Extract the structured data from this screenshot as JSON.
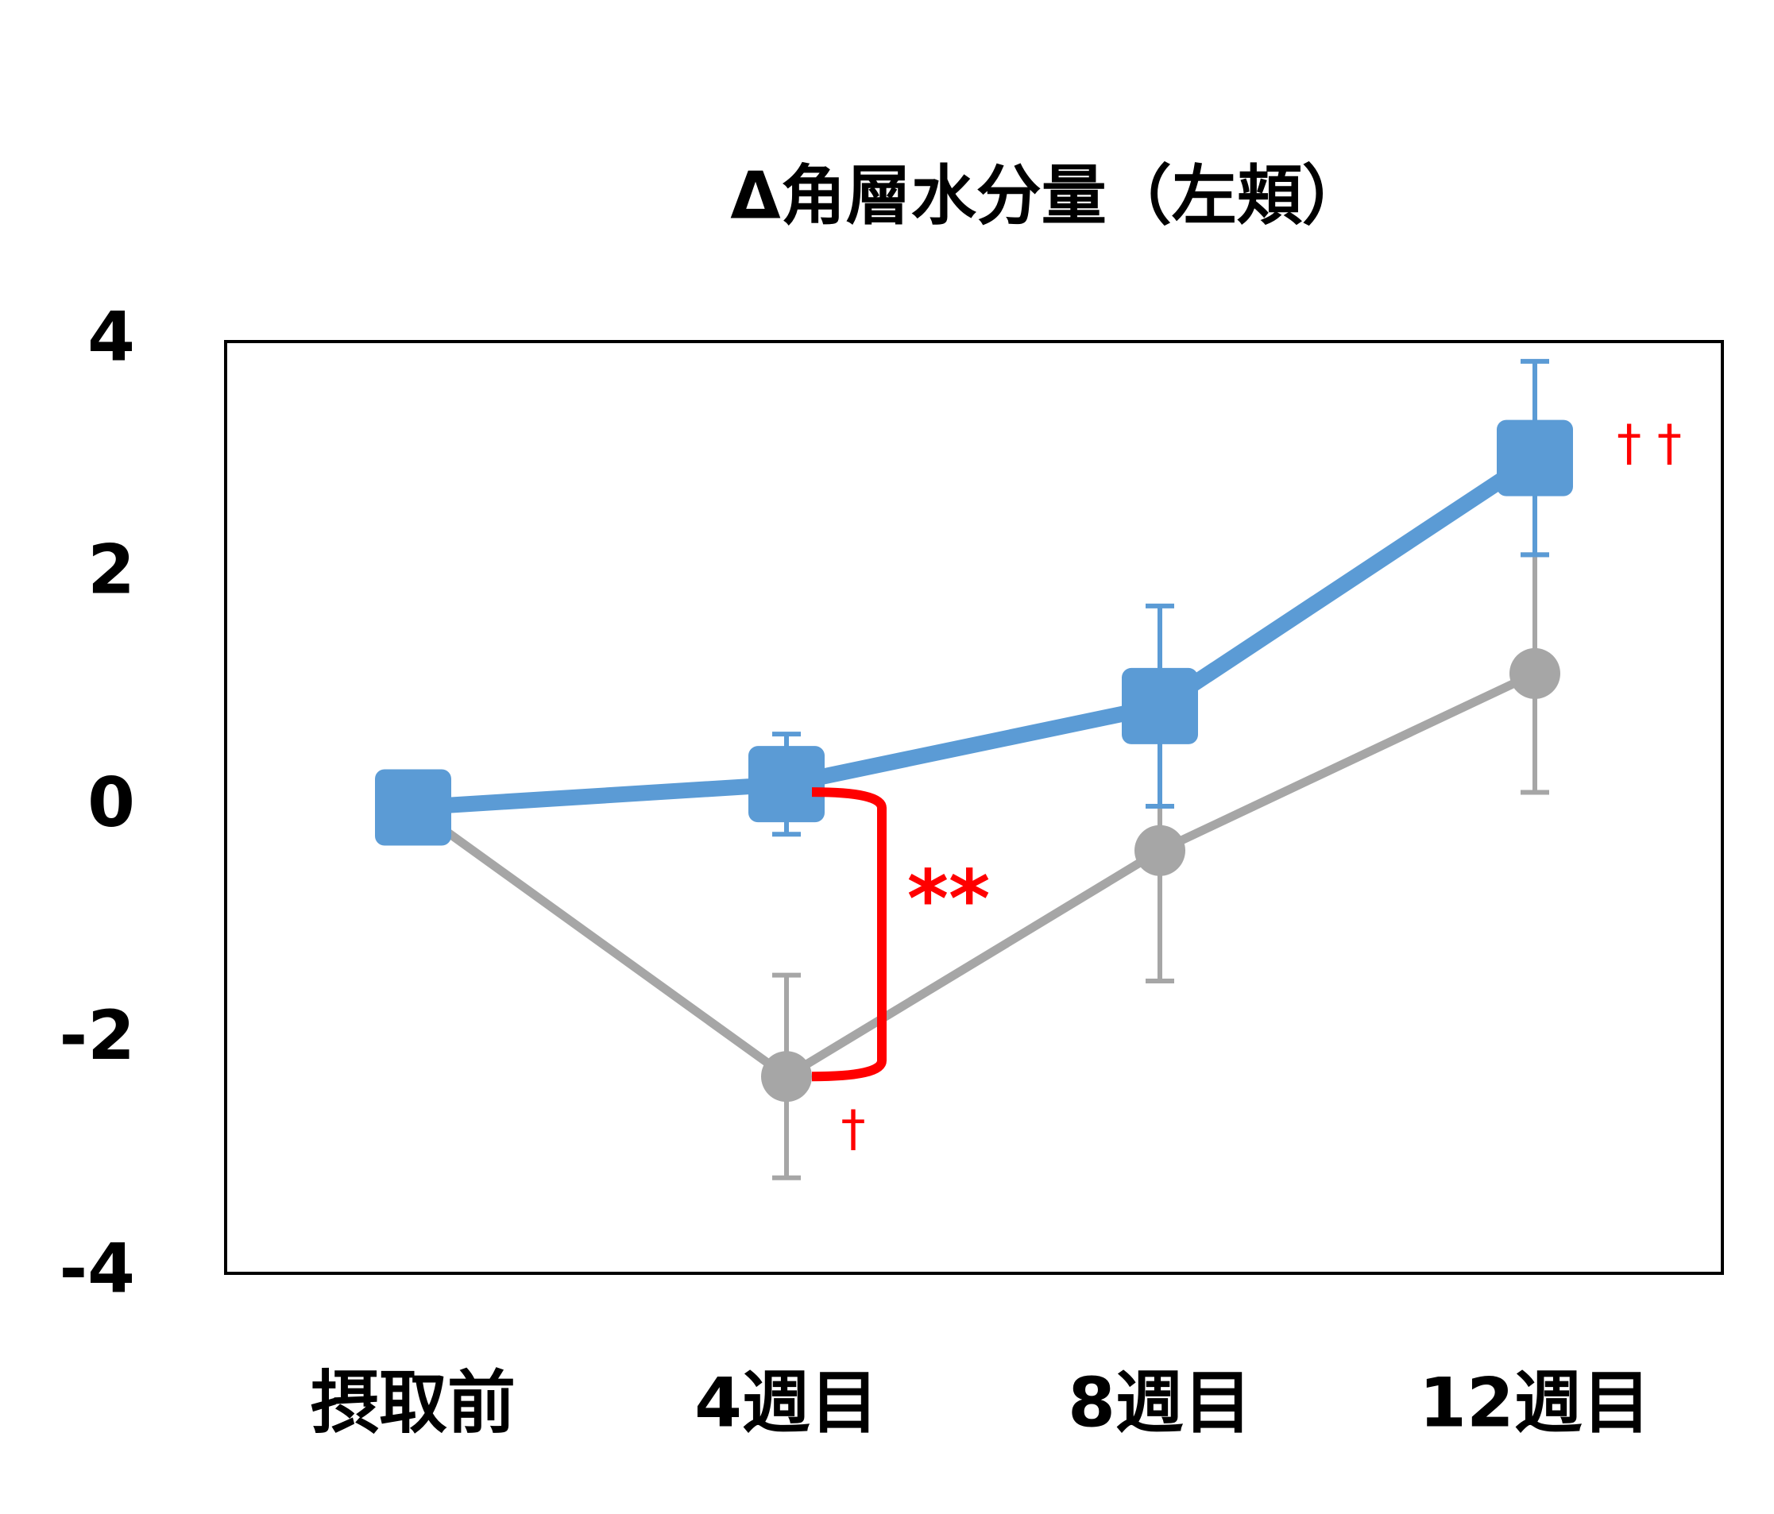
{
  "chart_data": {
    "type": "line",
    "title": "Δ角層水分量（左頬）",
    "categories": [
      "摂取前",
      "4週目",
      "8週目",
      "12週目"
    ],
    "series": [
      {
        "color": "#a6a6a6",
        "marker": "circle",
        "values": [
          0,
          -2.31,
          -0.37,
          1.15
        ],
        "errors": [
          null,
          0.87,
          1.12,
          1.02
        ]
      },
      {
        "color": "#5b9bd5",
        "marker": "square",
        "values": [
          0,
          0.2,
          0.87,
          3.0
        ],
        "errors": [
          null,
          0.43,
          0.86,
          0.83
        ]
      }
    ],
    "ylim": [
      -4,
      4
    ],
    "yticks": [
      -4,
      -2,
      0,
      2,
      4
    ],
    "grid": false,
    "annotations": [
      "**",
      "†",
      "† †"
    ]
  }
}
